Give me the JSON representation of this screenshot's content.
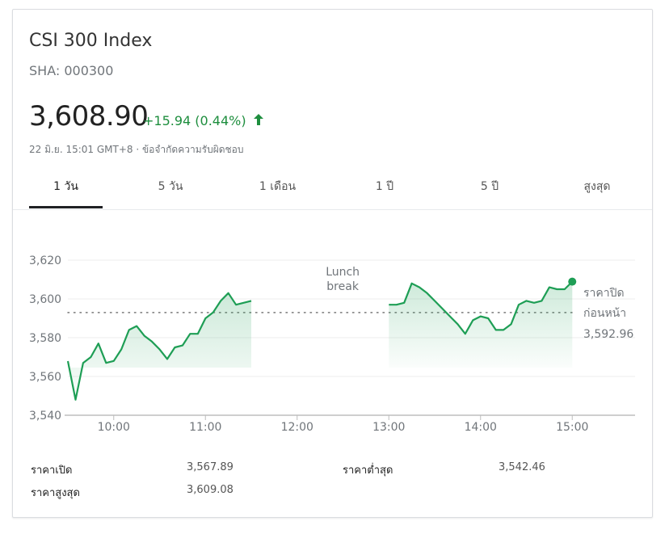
{
  "header": {
    "title": "CSI 300 Index",
    "ticker": "SHA: 000300",
    "price": "3,608.90",
    "change": "+15.94 (0.44%)",
    "meta": "22 มิ.ย. 15:01 GMT+8 · ข้อจำกัดความรับผิดชอบ"
  },
  "tabs": [
    {
      "label": "1 วัน",
      "active": true
    },
    {
      "label": "5 วัน"
    },
    {
      "label": "1 เดือน"
    },
    {
      "label": "1 ปี"
    },
    {
      "label": "5 ปี"
    },
    {
      "label": "สูงสุด"
    }
  ],
  "colors": {
    "accent": "#1e8e3e",
    "line": "#1e9e55",
    "grid": "#eeeeee"
  },
  "chart_data": {
    "type": "line",
    "x_ticks": [
      "10:00",
      "11:00",
      "12:00",
      "13:00",
      "14:00",
      "15:00"
    ],
    "y_ticks": [
      "3,620",
      "3,600",
      "3,580",
      "3,560",
      "3,540"
    ],
    "ylim": [
      3540,
      3620
    ],
    "grid": true,
    "annotation": [
      "Lunch",
      "break"
    ],
    "previous_close_label": [
      "ราคาปิด",
      "ก่อนหน้า"
    ],
    "previous_close_value": "3,592.96",
    "previous_close": 3592.96,
    "series": [
      {
        "x": [
          "09:30",
          "09:35",
          "09:40",
          "09:45",
          "09:50",
          "09:55",
          "10:00",
          "10:05",
          "10:10",
          "10:15",
          "10:20",
          "10:25",
          "10:30",
          "10:35",
          "10:40",
          "10:45",
          "10:50",
          "10:55",
          "11:00",
          "11:05",
          "11:10",
          "11:15",
          "11:20",
          "11:25",
          "11:30"
        ],
        "values": [
          3567.9,
          3548,
          3567,
          3570,
          3577,
          3567,
          3568,
          3574,
          3584,
          3586,
          3581,
          3578,
          3574,
          3569,
          3575,
          3576,
          3582,
          3582,
          3590,
          3593,
          3599,
          3603,
          3597,
          3598,
          3599
        ]
      },
      {
        "x": [
          "13:00",
          "13:05",
          "13:10",
          "13:15",
          "13:20",
          "13:25",
          "13:30",
          "13:35",
          "13:40",
          "13:45",
          "13:50",
          "13:55",
          "14:00",
          "14:05",
          "14:10",
          "14:15",
          "14:20",
          "14:25",
          "14:30",
          "14:35",
          "14:40",
          "14:45",
          "14:50",
          "14:55",
          "15:00"
        ],
        "values": [
          3597,
          3597,
          3598,
          3608,
          3606,
          3603,
          3599,
          3595,
          3591,
          3587,
          3582,
          3589,
          3591,
          3590,
          3584,
          3584,
          3587,
          3597,
          3599,
          3598,
          3599,
          3606,
          3605,
          3605,
          3608.9
        ]
      }
    ]
  },
  "stats": [
    {
      "label": "ราคาเปิด",
      "value": "3,567.89"
    },
    {
      "label": "ราคาต่ำสุด",
      "value": "3,542.46"
    },
    {
      "label": "ราคาสูงสุด",
      "value": "3,609.08"
    }
  ]
}
